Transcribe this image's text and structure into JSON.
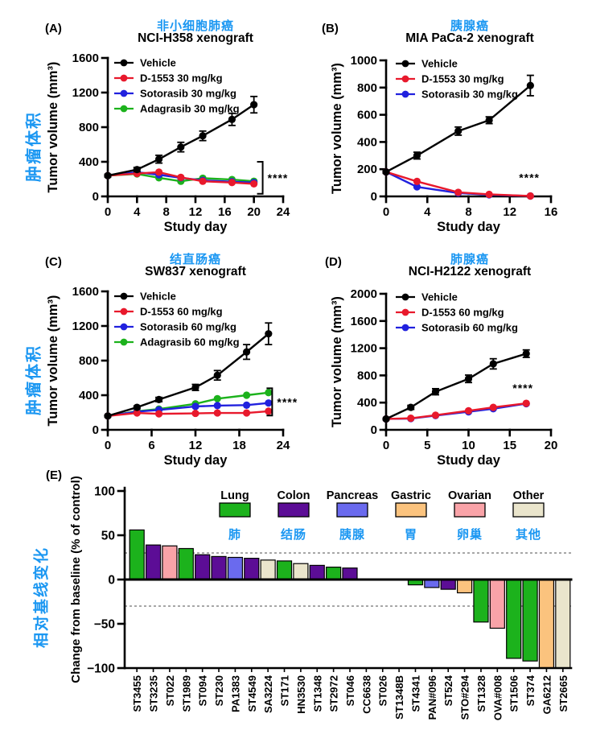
{
  "colors": {
    "accent_blue": "#1B97F2",
    "vehicle": "#000000",
    "d1553": "#E8192C",
    "sotorasib": "#2121DE",
    "adagrasib": "#1CB21C",
    "lung": "#1CB21C",
    "colon": "#5C0D96",
    "pancreas": "#6A6AEE",
    "gastric": "#FBC37E",
    "ovarian": "#F9A3A8",
    "other": "#EAE5CC",
    "ref_line": "#8A8A8A"
  },
  "side_labels": {
    "tumor_volume": "肿瘤体积",
    "baseline_change": "相对基线变化"
  },
  "chart_data": [
    {
      "panel_label": "(A)",
      "type": "line",
      "title_zh": "非小细胞肺癌",
      "title_en": "NCI-H358 xenograft",
      "xlabel": "Study day",
      "ylabel": "Tumor volume (mm³)",
      "xlim": [
        0,
        24
      ],
      "xticks": [
        0,
        4,
        8,
        12,
        16,
        20,
        24
      ],
      "ylim": [
        0,
        1600
      ],
      "yticks": [
        0,
        400,
        800,
        1200,
        1600
      ],
      "x": [
        0,
        4,
        7,
        10,
        13,
        17,
        20
      ],
      "series": [
        {
          "name": "Vehicle",
          "color_key": "vehicle",
          "values": [
            240,
            310,
            430,
            570,
            700,
            890,
            1060
          ],
          "yerr": [
            15,
            25,
            45,
            55,
            55,
            70,
            95
          ]
        },
        {
          "name": "D-1553 30 mg/kg",
          "color_key": "d1553",
          "values": [
            240,
            265,
            280,
            220,
            175,
            160,
            145
          ]
        },
        {
          "name": "Sotorasib 30 mg/kg",
          "color_key": "sotorasib",
          "values": [
            240,
            280,
            250,
            215,
            185,
            170,
            160
          ]
        },
        {
          "name": "Adagrasib 30 mg/kg",
          "color_key": "adagrasib",
          "values": [
            240,
            260,
            215,
            175,
            210,
            195,
            175
          ]
        }
      ],
      "significance": {
        "style": "bracket",
        "stars": "****",
        "x": 21.2,
        "y1": 400,
        "y2": 30
      }
    },
    {
      "panel_label": "(B)",
      "type": "line",
      "title_zh": "胰腺癌",
      "title_en": "MIA PaCa-2 xenograft",
      "xlabel": "Study day",
      "ylabel": "Tumor volume (mm³)",
      "xlim": [
        0,
        16
      ],
      "xticks": [
        0,
        4,
        8,
        12,
        16
      ],
      "ylim": [
        0,
        1000
      ],
      "yticks": [
        0,
        200,
        400,
        600,
        800,
        1000
      ],
      "x": [
        0,
        3,
        7,
        10,
        14
      ],
      "series": [
        {
          "name": "Vehicle",
          "color_key": "vehicle",
          "values": [
            180,
            300,
            480,
            560,
            815
          ],
          "yerr": [
            10,
            25,
            30,
            25,
            75
          ]
        },
        {
          "name": "D-1553 30 mg/kg",
          "color_key": "d1553",
          "values": [
            180,
            110,
            30,
            15,
            3
          ]
        },
        {
          "name": "Sotorasib 30 mg/kg",
          "color_key": "sotorasib",
          "values": [
            180,
            70,
            25,
            12,
            3
          ]
        }
      ],
      "significance": {
        "style": "text",
        "stars": "****",
        "x": 13.9,
        "y": 110
      }
    },
    {
      "panel_label": "(C)",
      "type": "line",
      "title_zh": "结直肠癌",
      "title_en": "SW837 xenograft",
      "xlabel": "Study day",
      "ylabel": "Tumor volume (mm³)",
      "xlim": [
        0,
        24
      ],
      "xticks": [
        0,
        6,
        12,
        18,
        24
      ],
      "ylim": [
        0,
        1600
      ],
      "yticks": [
        0,
        400,
        800,
        1200,
        1600
      ],
      "x": [
        0,
        4,
        7,
        12,
        15,
        19,
        22
      ],
      "series": [
        {
          "name": "Vehicle",
          "color_key": "vehicle",
          "values": [
            160,
            260,
            350,
            490,
            630,
            900,
            1110
          ],
          "yerr": [
            10,
            15,
            25,
            35,
            55,
            85,
            125
          ]
        },
        {
          "name": "D-1553 60 mg/kg",
          "color_key": "d1553",
          "values": [
            160,
            195,
            185,
            190,
            195,
            195,
            215
          ]
        },
        {
          "name": "Sotorasib 60 mg/kg",
          "color_key": "sotorasib",
          "values": [
            160,
            210,
            230,
            270,
            280,
            285,
            310
          ]
        },
        {
          "name": "Adagrasib 60 mg/kg",
          "color_key": "adagrasib",
          "values": [
            160,
            215,
            240,
            300,
            360,
            400,
            430
          ]
        }
      ],
      "significance": {
        "style": "bracket",
        "stars": "****",
        "x": 22.5,
        "y1": 480,
        "y2": 165
      }
    },
    {
      "panel_label": "(D)",
      "type": "line",
      "title_zh": "肺腺癌",
      "title_en": "NCI-H2122 xenograft",
      "xlabel": "Study day",
      "ylabel": "Tumor volume (mm³)",
      "xlim": [
        0,
        20
      ],
      "xticks": [
        0,
        5,
        10,
        15,
        20
      ],
      "ylim": [
        0,
        2000
      ],
      "yticks": [
        0,
        400,
        800,
        1200,
        1600,
        2000
      ],
      "x": [
        0,
        3,
        6,
        10,
        13,
        17
      ],
      "series": [
        {
          "name": "Vehicle",
          "color_key": "vehicle",
          "values": [
            160,
            330,
            560,
            750,
            970,
            1120
          ],
          "yerr": [
            10,
            30,
            45,
            55,
            75,
            55
          ]
        },
        {
          "name": "D-1553 60 mg/kg",
          "color_key": "d1553",
          "values": [
            160,
            170,
            215,
            280,
            330,
            390
          ]
        },
        {
          "name": "Sotorasib 60 mg/kg",
          "color_key": "sotorasib",
          "values": [
            160,
            165,
            210,
            265,
            310,
            385
          ]
        }
      ],
      "significance": {
        "style": "text",
        "stars": "****",
        "x": 16.6,
        "y": 555
      }
    },
    {
      "panel_label": "(E)",
      "type": "bar",
      "ylabel": "Change from baseline (% of control)",
      "ylim": [
        -100,
        100
      ],
      "yticks": [
        100,
        50,
        0,
        -50,
        -100
      ],
      "ref_lines": [
        30,
        -30
      ],
      "legend": [
        {
          "en": "Lung",
          "zh": "肺",
          "color_key": "lung"
        },
        {
          "en": "Colon",
          "zh": "结肠",
          "color_key": "colon"
        },
        {
          "en": "Pancreas",
          "zh": "胰腺",
          "color_key": "pancreas"
        },
        {
          "en": "Gastric",
          "zh": "胃",
          "color_key": "gastric"
        },
        {
          "en": "Ovarian",
          "zh": "卵巢",
          "color_key": "ovarian"
        },
        {
          "en": "Other",
          "zh": "其他",
          "color_key": "other"
        }
      ],
      "categories": [
        "ST3455",
        "ST3235",
        "ST022",
        "ST1989",
        "ST094",
        "ST230",
        "PA1383",
        "ST4549",
        "SA3224",
        "ST171",
        "HN3530",
        "ST1348",
        "ST2972",
        "ST046",
        "CC6638",
        "ST026",
        "ST1348B",
        "ST4341",
        "PAN#096",
        "ST524",
        "STO#294",
        "ST1328",
        "OVA#008",
        "ST1506",
        "ST374",
        "GA6212",
        "ST2665"
      ],
      "values": [
        56,
        39,
        38,
        35,
        28,
        26,
        25,
        24,
        22,
        21,
        18,
        16,
        14,
        13,
        0,
        0,
        0,
        -6,
        -9,
        -11,
        -15,
        -48,
        -55,
        -89,
        -92,
        -100,
        -100
      ],
      "groups": [
        "lung",
        "colon",
        "ovarian",
        "lung",
        "colon",
        "colon",
        "pancreas",
        "colon",
        "other",
        "lung",
        "other",
        "colon",
        "lung",
        "colon",
        "colon",
        "colon",
        "colon",
        "lung",
        "pancreas",
        "colon",
        "gastric",
        "lung",
        "ovarian",
        "lung",
        "lung",
        "gastric",
        "other"
      ]
    }
  ]
}
